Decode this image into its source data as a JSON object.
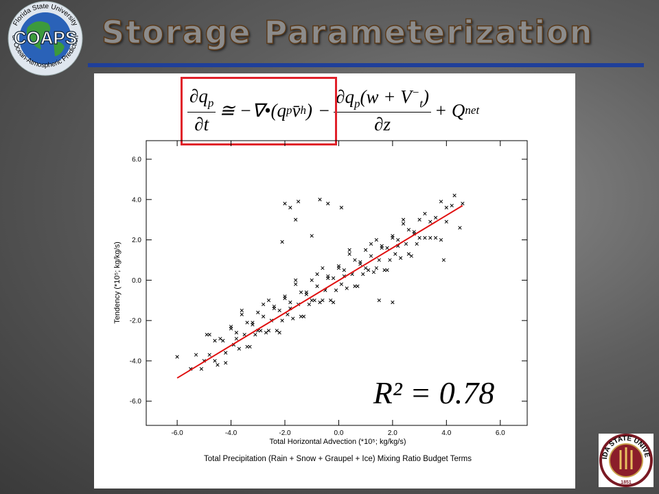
{
  "header": {
    "title": "Storage Parameterization",
    "logo_text": "COAPS",
    "logo_ring_top": "Florida State University",
    "logo_ring_bottom": "Center for Ocean-Atmospheric Prediction Studies",
    "seal_text": "FLORIDA STATE UNIVERSITY",
    "seal_year": "1851"
  },
  "equation": {
    "t1_num": "∂q",
    "t1_num_sub": "p",
    "t1_den": "∂t",
    "t2": "≅ −∇•(q",
    "t2_sub1": "p",
    "t2_mid": "v̄",
    "t2_sub2": "h",
    "t2_end": ")",
    "t3_sign": "−",
    "t3_num": "∂q",
    "t3_num_sub": "p",
    "t3_num_rest": "(w + V",
    "t3_sup": "−",
    "t3_sub": "t",
    "t3_close": ")",
    "t3_den": "∂z",
    "t4": "+ Q",
    "t4_sub": "net"
  },
  "chart_data": {
    "type": "scatter",
    "xlabel": "Total Horizontal Advection (*10⁵; kg/kg/s)",
    "ylabel": "Tendency (*10⁵; kg/kg/s)",
    "caption": "Total Precipitation (Rain + Snow + Graupel + Ice) Mixing Ratio Budget Terms",
    "annotation": "R² = 0.78",
    "color": "#000000",
    "xlim": [
      -7.15,
      7.0
    ],
    "ylim": [
      -7.2,
      6.92
    ],
    "xticks": [
      {
        "value": -6,
        "label": "-6.0"
      },
      {
        "value": -4,
        "label": "-4.0"
      },
      {
        "value": -2,
        "label": "-2.0"
      },
      {
        "value": 0,
        "label": "0.0"
      },
      {
        "value": 2,
        "label": "2.0"
      },
      {
        "value": 4,
        "label": "4.0"
      },
      {
        "value": 6,
        "label": "6.0"
      }
    ],
    "yticks": [
      {
        "value": -6,
        "label": "-6.0"
      },
      {
        "value": -4,
        "label": "-4.0"
      },
      {
        "value": -2,
        "label": "-2.0"
      },
      {
        "value": 0,
        "label": "0.0"
      },
      {
        "value": 2,
        "label": "2.0"
      },
      {
        "value": 4,
        "label": "4.0"
      },
      {
        "value": 6,
        "label": "6.0"
      }
    ],
    "x": [
      -6.0,
      -5.5,
      -5.3,
      -5.1,
      -4.9,
      -4.8,
      -4.6,
      -4.5,
      -4.3,
      -4.2,
      -4.0,
      -3.9,
      -3.8,
      -3.7,
      -3.6,
      -3.5,
      -3.4,
      -3.3,
      -3.2,
      -3.1,
      -3.0,
      -2.9,
      -2.8,
      -2.7,
      -2.6,
      -2.5,
      -2.4,
      -2.3,
      -2.2,
      -2.1,
      -2.0,
      -1.9,
      -1.8,
      -1.7,
      -1.6,
      -1.5,
      -1.4,
      -1.3,
      -1.2,
      -1.1,
      -1.0,
      -0.9,
      -0.8,
      -0.7,
      -0.6,
      -0.5,
      -0.4,
      -0.3,
      -0.2,
      -0.1,
      0.0,
      0.1,
      0.2,
      0.3,
      0.4,
      0.5,
      0.6,
      0.7,
      0.8,
      0.9,
      1.0,
      1.1,
      1.2,
      1.3,
      1.4,
      1.5,
      1.6,
      1.7,
      1.8,
      1.9,
      2.0,
      2.1,
      2.2,
      2.3,
      2.4,
      2.5,
      2.6,
      2.7,
      2.8,
      2.9,
      3.0,
      3.2,
      3.4,
      3.6,
      3.8,
      4.0,
      4.2,
      4.5,
      -5.0,
      -4.8,
      -4.6,
      -4.4,
      -4.2,
      -4.0,
      -3.8,
      -3.6,
      -3.4,
      -3.2,
      -3.0,
      -2.8,
      -2.6,
      -2.4,
      -2.2,
      -2.0,
      -1.8,
      -1.6,
      -1.4,
      -1.2,
      -1.0,
      -0.8,
      -0.6,
      -0.4,
      -0.2,
      0.0,
      0.2,
      0.4,
      0.6,
      0.8,
      1.0,
      1.2,
      1.4,
      1.6,
      1.8,
      2.0,
      2.2,
      2.4,
      2.6,
      2.8,
      3.0,
      3.2,
      3.4,
      3.6,
      3.8,
      4.0,
      -2.0,
      -1.5,
      -0.7,
      -0.4,
      0.1,
      -1.6,
      -2.1,
      -1.0,
      1.5,
      2.0,
      3.9,
      4.3,
      4.6,
      -1.8
    ],
    "values": [
      -3.8,
      -4.4,
      -3.7,
      -4.4,
      -2.7,
      -3.7,
      -3.0,
      -4.2,
      -3.0,
      -3.6,
      -2.3,
      -3.2,
      -2.6,
      -3.4,
      -1.7,
      -2.7,
      -2.1,
      -3.3,
      -2.2,
      -2.7,
      -1.6,
      -2.5,
      -1.8,
      -2.6,
      -1.0,
      -2.0,
      -1.3,
      -2.5,
      -1.5,
      -2.0,
      -0.8,
      -1.7,
      -1.1,
      -1.9,
      -0.2,
      -1.2,
      -0.6,
      -1.8,
      -0.7,
      -1.2,
      0.0,
      -1.0,
      -0.3,
      -1.1,
      0.6,
      -0.5,
      0.2,
      -1.0,
      0.1,
      -0.5,
      0.7,
      -0.2,
      0.5,
      -0.4,
      1.3,
      0.3,
      1.0,
      -0.3,
      0.8,
      0.3,
      1.5,
      0.5,
      1.2,
      0.4,
      2.0,
      1.0,
      1.7,
      0.5,
      1.6,
      1.0,
      2.2,
      1.3,
      2.0,
      1.1,
      2.8,
      1.8,
      2.5,
      1.2,
      2.3,
      1.8,
      3.0,
      2.1,
      2.9,
      2.1,
      3.9,
      2.9,
      3.7,
      2.6,
      -4.0,
      -2.7,
      -4.0,
      -2.9,
      -4.1,
      -2.4,
      -2.9,
      -1.5,
      -3.3,
      -2.1,
      -2.5,
      -1.2,
      -2.5,
      -1.4,
      -2.6,
      -0.9,
      -1.4,
      0.0,
      -1.8,
      -0.6,
      -1.0,
      0.3,
      -1.0,
      0.1,
      -1.1,
      0.6,
      0.2,
      1.5,
      -0.3,
      0.9,
      0.6,
      1.8,
      0.6,
      1.6,
      0.5,
      2.1,
      1.7,
      3.0,
      1.3,
      2.4,
      2.1,
      3.3,
      2.1,
      3.1,
      2.0,
      3.6,
      3.8,
      3.9,
      4.0,
      3.8,
      3.6,
      3.0,
      1.9,
      2.2,
      -1.0,
      -1.1,
      1.0,
      4.2,
      3.8,
      3.6
    ],
    "fit_line": {
      "x": [
        -6.0,
        4.6
      ],
      "values": [
        -4.85,
        3.7
      ],
      "color": "#e01010"
    }
  }
}
